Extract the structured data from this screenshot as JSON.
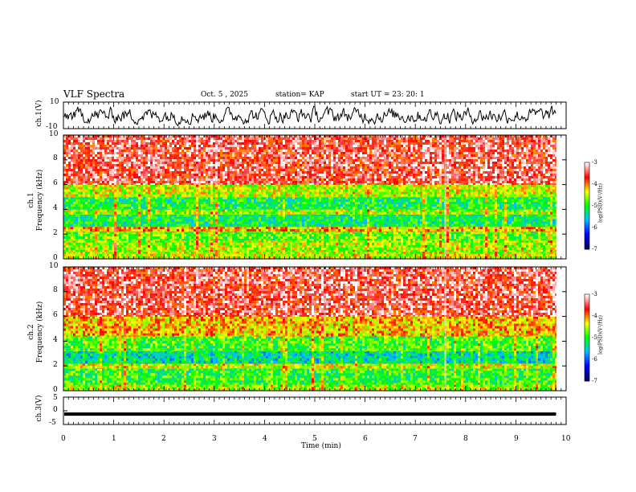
{
  "header": {
    "title": "VLF Spectra",
    "date": "Oct. 5  , 2025",
    "station": "station= KAP",
    "start": "start  UT  =   23: 20: 1"
  },
  "colors": {
    "spec_stops": [
      "#000066",
      "#0000ff",
      "#00bfff",
      "#00ff00",
      "#ffff00",
      "#ff0000",
      "#ffffff"
    ]
  },
  "chart_data": [
    {
      "type": "line",
      "name": "ch1-waveform",
      "ylabel": "ch.1(V)",
      "ylim": [
        -10,
        10
      ],
      "yticks": [
        "10",
        "-10"
      ],
      "xlim": [
        0,
        10
      ],
      "description_series": "broadband signal around 0 V fluctuating between roughly -8 and +8 V"
    },
    {
      "type": "heatmap",
      "name": "ch1-spectrogram",
      "ylabel": "ch.1\nFrequency  (kHz)",
      "ylim": [
        0,
        10
      ],
      "yticks": [
        "0",
        "2",
        "4",
        "6",
        "8",
        "10"
      ],
      "xlim": [
        0,
        10.0
      ],
      "data_end_min": 9.8,
      "colorbar": {
        "label": "log(PSD)(V²/Hz)",
        "range": [
          -7,
          -3
        ],
        "ticks": [
          "-3",
          "-4",
          "-5",
          "-6",
          "-7"
        ]
      },
      "bands_khz": [
        {
          "from": 0.0,
          "to": 0.6,
          "level": -4.5
        },
        {
          "from": 0.6,
          "to": 1.5,
          "level": -4.6
        },
        {
          "from": 1.5,
          "to": 2.2,
          "level": -4.8
        },
        {
          "from": 2.2,
          "to": 2.6,
          "level": -4.1
        },
        {
          "from": 2.6,
          "to": 3.6,
          "level": -5.2
        },
        {
          "from": 3.6,
          "to": 4.0,
          "level": -4.6
        },
        {
          "from": 4.0,
          "to": 5.0,
          "level": -5.1
        },
        {
          "from": 5.0,
          "to": 6.0,
          "level": -4.5
        },
        {
          "from": 6.0,
          "to": 10.0,
          "level": -3.5
        }
      ]
    },
    {
      "type": "heatmap",
      "name": "ch2-spectrogram",
      "ylabel": "ch.2\nFrequency  (kHz)",
      "ylim": [
        0,
        10
      ],
      "yticks": [
        "0",
        "2",
        "4",
        "6",
        "8",
        "10"
      ],
      "xlim": [
        0,
        10.0
      ],
      "data_end_min": 9.8,
      "colorbar": {
        "label": "log(PSD)(V²/Hz)",
        "range": [
          -7,
          -3
        ],
        "ticks": [
          "-3",
          "-4",
          "-5",
          "-6",
          "-7"
        ]
      },
      "bands_khz": [
        {
          "from": 0.0,
          "to": 0.5,
          "level": -4.6
        },
        {
          "from": 0.5,
          "to": 1.8,
          "level": -5.0
        },
        {
          "from": 1.8,
          "to": 2.2,
          "level": -4.5
        },
        {
          "from": 2.2,
          "to": 3.2,
          "level": -5.4
        },
        {
          "from": 3.2,
          "to": 4.4,
          "level": -4.9
        },
        {
          "from": 4.4,
          "to": 6.0,
          "level": -4.2
        },
        {
          "from": 6.0,
          "to": 10.0,
          "level": -3.5
        }
      ]
    },
    {
      "type": "line",
      "name": "ch3-waveform",
      "ylabel": "ch.3(V)",
      "ylim": [
        -5,
        5
      ],
      "yticks": [
        "5",
        "0",
        "-5"
      ],
      "xlim": [
        0,
        10
      ],
      "level_v": -1.2,
      "thickness_v": 1.2,
      "data_end_min": 9.8
    }
  ],
  "xaxis": {
    "label": "Time  (min)",
    "ticks": [
      "0",
      "1",
      "2",
      "3",
      "4",
      "5",
      "6",
      "7",
      "8",
      "9",
      "10"
    ]
  }
}
